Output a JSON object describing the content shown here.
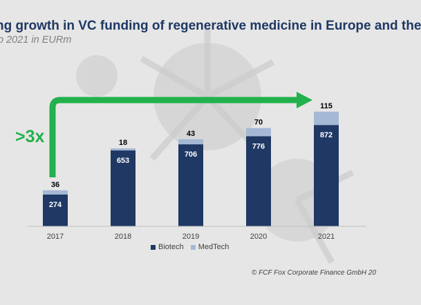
{
  "title": "ng growth in VC funding of regenerative medicine in Europe and the",
  "subtitle": "o 2021 in EURm",
  "callout": ">3x",
  "copyright": "© FCF Fox Corporate Finance GmbH 20",
  "colors": {
    "biotech": "#1f3864",
    "medtech": "#a5b8d4",
    "arrow": "#22b14c",
    "title": "#1f3864"
  },
  "chart_data": {
    "type": "bar",
    "stacked": true,
    "categories": [
      "2017",
      "2018",
      "2019",
      "2020",
      "2021"
    ],
    "series": [
      {
        "name": "Biotech",
        "values": [
          274,
          653,
          706,
          776,
          872
        ]
      },
      {
        "name": "MedTech",
        "values": [
          36,
          18,
          43,
          70,
          115
        ]
      }
    ],
    "totals_shown": false,
    "legend": "bottom",
    "grid": false
  }
}
